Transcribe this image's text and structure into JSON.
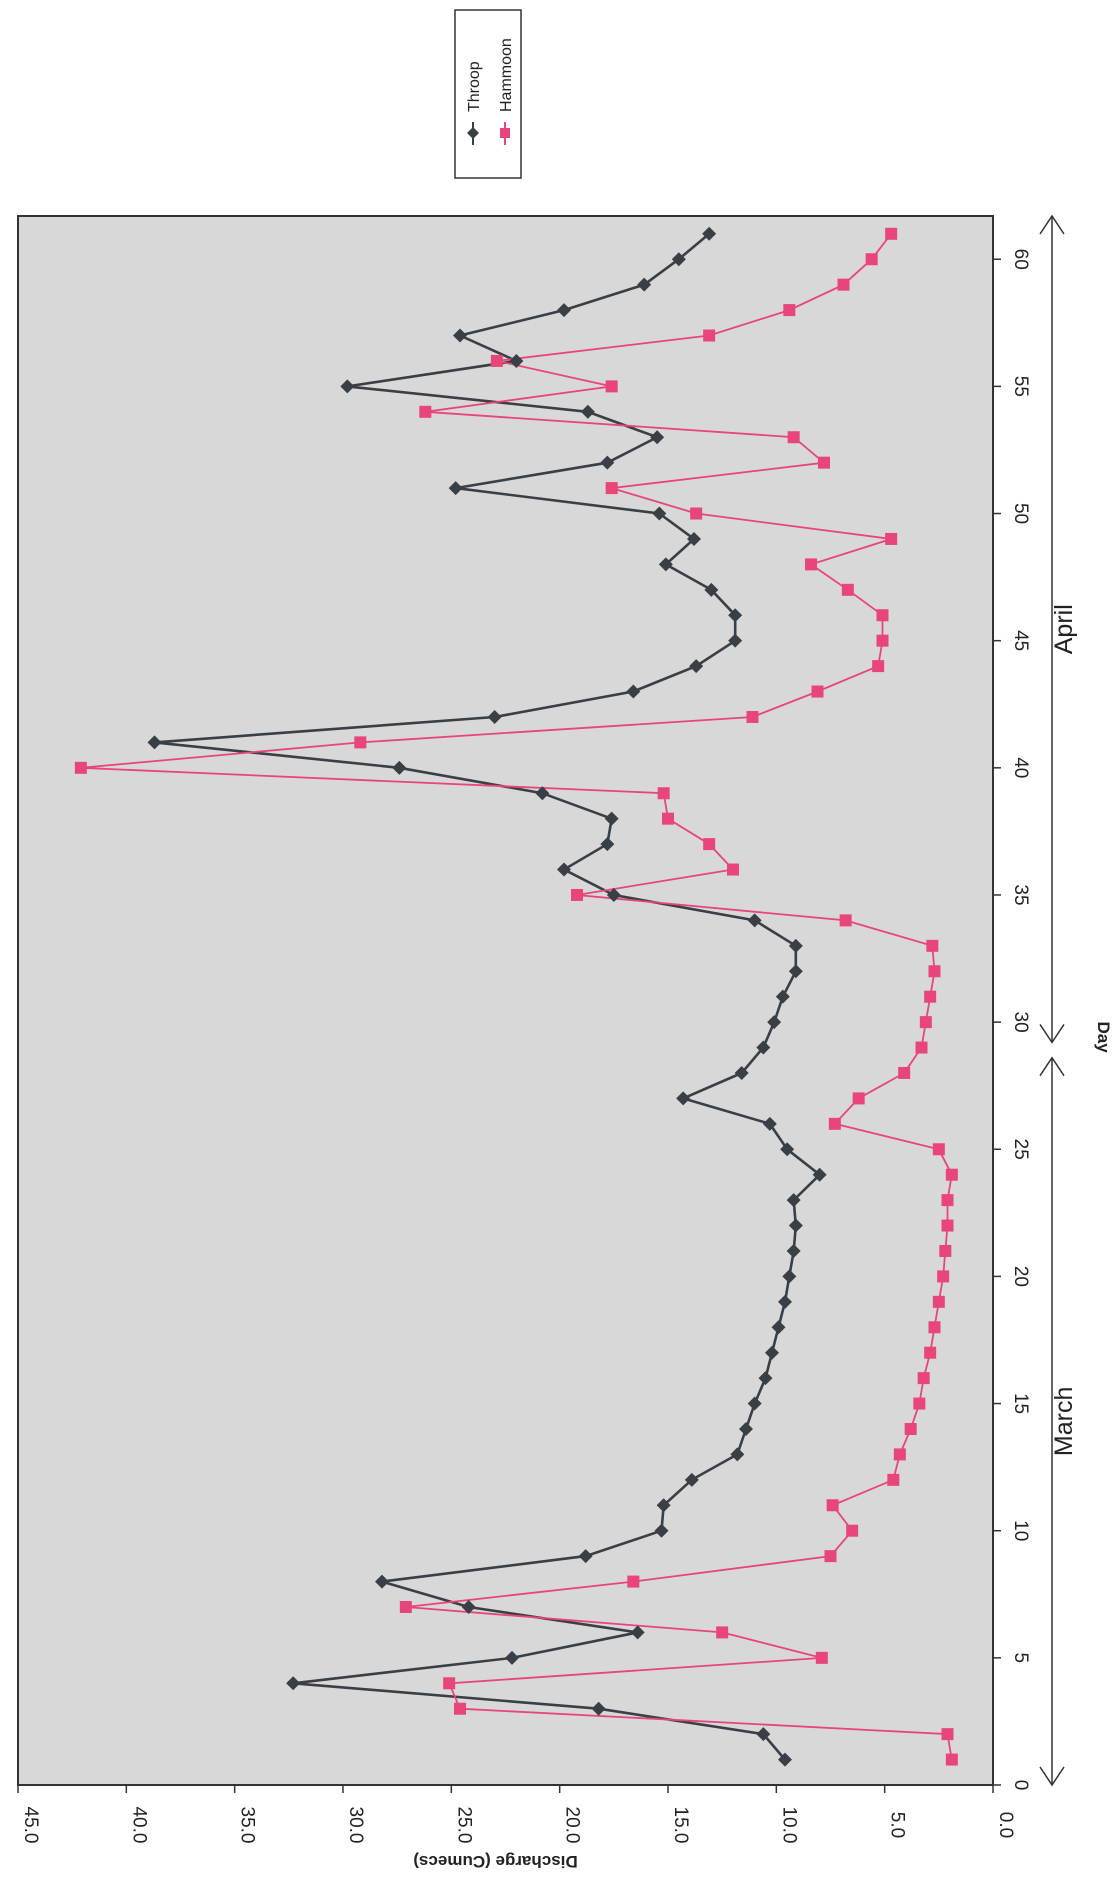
{
  "chart_data": {
    "type": "line",
    "orientation": "rotated-90-clockwise",
    "xlabel": "Day",
    "ylabel": "Discharge (Cumecs)",
    "xlim": [
      0,
      62
    ],
    "ylim": [
      0,
      45
    ],
    "x_ticks": [
      0,
      5,
      10,
      15,
      20,
      25,
      30,
      35,
      40,
      45,
      50,
      55,
      60
    ],
    "y_ticks": [
      "0.0",
      "5.0",
      "10.0",
      "15.0",
      "20.0",
      "25.0",
      "30.0",
      "35.0",
      "40.0",
      "45.0"
    ],
    "y_tick_values": [
      0,
      5,
      10,
      15,
      20,
      25,
      30,
      35,
      40,
      45
    ],
    "grid": false,
    "plot_background": "#d8d8d8",
    "legend_position": "top-right",
    "periods": [
      {
        "label": "March",
        "start": 0,
        "end": 28.6
      },
      {
        "label": "April",
        "start": 29.2,
        "end": 61.7
      }
    ],
    "x": [
      1,
      2,
      3,
      4,
      5,
      6,
      7,
      8,
      9,
      10,
      11,
      12,
      13,
      14,
      15,
      16,
      17,
      18,
      19,
      20,
      21,
      22,
      23,
      24,
      25,
      26,
      27,
      28,
      29,
      30,
      31,
      32,
      33,
      34,
      35,
      36,
      37,
      38,
      39,
      40,
      41,
      42,
      43,
      44,
      45,
      46,
      47,
      48,
      49,
      50,
      51,
      52,
      53,
      54,
      55,
      56,
      57,
      58,
      59,
      60,
      61
    ],
    "series": [
      {
        "name": "Throop",
        "color": "#3a3f45",
        "marker": "diamond",
        "values": [
          9.6,
          10.6,
          18.2,
          32.3,
          22.2,
          16.4,
          24.2,
          28.2,
          18.8,
          15.3,
          15.2,
          13.9,
          11.8,
          11.4,
          11.0,
          10.5,
          10.2,
          9.9,
          9.6,
          9.4,
          9.2,
          9.1,
          9.2,
          8.0,
          9.5,
          10.3,
          14.3,
          11.6,
          10.6,
          10.1,
          9.7,
          9.1,
          9.1,
          11.0,
          17.5,
          19.8,
          17.8,
          17.6,
          20.8,
          27.4,
          38.7,
          23.0,
          16.6,
          13.7,
          11.9,
          11.9,
          13.0,
          15.1,
          13.8,
          15.4,
          24.8,
          17.8,
          15.5,
          18.7,
          29.8,
          22.0,
          24.6,
          19.8,
          16.1,
          14.5,
          13.1
        ]
      },
      {
        "name": "Hammoon",
        "color": "#e8457a",
        "marker": "square",
        "values": [
          1.9,
          2.1,
          24.6,
          25.1,
          7.9,
          12.5,
          27.1,
          16.6,
          7.5,
          6.5,
          7.4,
          4.6,
          4.3,
          3.8,
          3.4,
          3.2,
          2.9,
          2.7,
          2.5,
          2.3,
          2.2,
          2.1,
          2.1,
          1.9,
          2.5,
          7.3,
          6.2,
          4.1,
          3.3,
          3.1,
          2.9,
          2.7,
          2.8,
          6.8,
          19.2,
          12.0,
          13.1,
          15.0,
          15.2,
          42.1,
          29.2,
          11.1,
          8.1,
          5.3,
          5.1,
          5.1,
          6.7,
          8.4,
          4.7,
          13.7,
          17.6,
          7.8,
          9.2,
          26.2,
          17.6,
          22.9,
          13.1,
          9.4,
          6.9,
          5.6,
          4.7
        ]
      }
    ]
  }
}
